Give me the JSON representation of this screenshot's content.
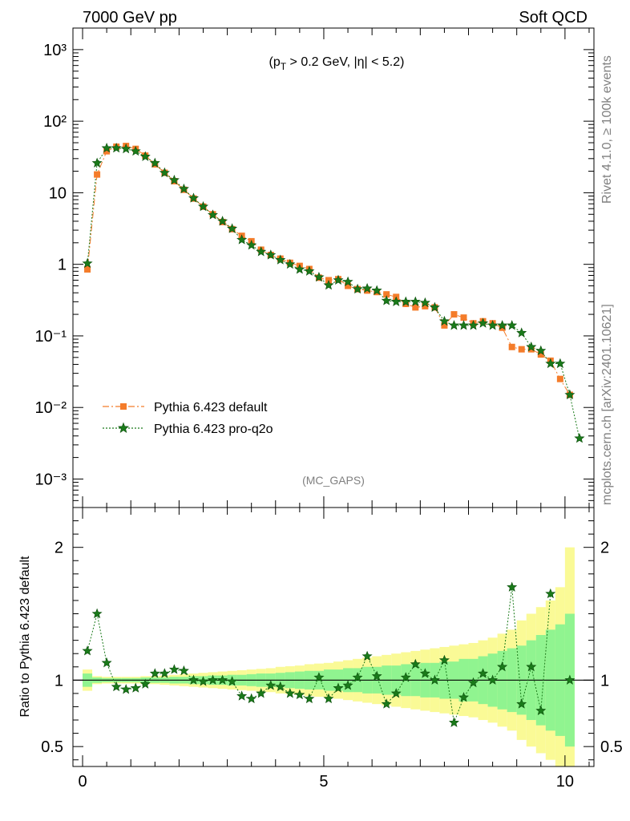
{
  "header": {
    "left": "7000 GeV pp",
    "right": "Soft QCD"
  },
  "annotation": {
    "cuts": "(p_T > 0.2 GeV, |η| < 5.2)",
    "analysis": "(MC_GAPS)"
  },
  "side_labels": {
    "rivet": "Rivet 4.1.0, ≥ 100k events",
    "site": "mcplots.cern.ch [arXiv:2401.10621]"
  },
  "colors": {
    "series1": "#f47c2a",
    "series2": "#1a7a1a",
    "band_inner": "#90f490",
    "band_outer": "#fafa96"
  },
  "chart_data": [
    {
      "type": "line",
      "title": "",
      "xlabel": "",
      "ylabel": "",
      "yscale": "log",
      "xlim": [
        -0.2,
        10.6
      ],
      "ylim": [
        0.0004,
        2000
      ],
      "yticks": [
        {
          "value": 1000,
          "label": "10³"
        },
        {
          "value": 100,
          "label": "10²"
        },
        {
          "value": 10,
          "label": "10"
        },
        {
          "value": 1,
          "label": "1"
        },
        {
          "value": 0.1,
          "label": "10⁻¹"
        },
        {
          "value": 0.01,
          "label": "10⁻²"
        },
        {
          "value": 0.001,
          "label": "10⁻³"
        }
      ],
      "x": [
        0.1,
        0.3,
        0.5,
        0.7,
        0.9,
        1.1,
        1.3,
        1.5,
        1.7,
        1.9,
        2.1,
        2.3,
        2.5,
        2.7,
        2.9,
        3.1,
        3.3,
        3.5,
        3.7,
        3.9,
        4.1,
        4.3,
        4.5,
        4.7,
        4.9,
        5.1,
        5.3,
        5.5,
        5.7,
        5.9,
        6.1,
        6.3,
        6.5,
        6.7,
        6.9,
        7.1,
        7.3,
        7.5,
        7.7,
        7.9,
        8.1,
        8.3,
        8.5,
        8.7,
        8.9,
        9.1,
        9.3,
        9.5,
        9.7,
        9.9,
        10.1,
        10.3
      ],
      "series": [
        {
          "name": "Pythia 6.423 default",
          "marker": "square",
          "linestyle": "dashdot",
          "values": [
            0.85,
            18,
            38,
            44,
            45,
            41,
            33,
            25,
            19,
            14.5,
            11,
            8.3,
            6.4,
            5.0,
            3.9,
            3.1,
            2.5,
            2.1,
            1.6,
            1.35,
            1.2,
            1.05,
            0.95,
            0.86,
            0.65,
            0.6,
            0.62,
            0.5,
            0.45,
            0.43,
            0.41,
            0.38,
            0.35,
            0.28,
            0.25,
            0.26,
            0.25,
            0.14,
            0.2,
            0.18,
            0.15,
            0.16,
            0.15,
            0.13,
            0.07,
            0.065,
            0.065,
            0.055,
            0.045,
            0.025,
            0.015,
            null
          ]
        },
        {
          "name": "Pythia 6.423 pro-q2o",
          "marker": "star",
          "linestyle": "dotted",
          "values": [
            1.03,
            26,
            42,
            42,
            41,
            38,
            32,
            26,
            19,
            15,
            11.3,
            8.4,
            6.4,
            4.9,
            4.0,
            3.15,
            2.2,
            1.85,
            1.5,
            1.35,
            1.15,
            1.0,
            0.85,
            0.8,
            0.66,
            0.51,
            0.6,
            0.57,
            0.45,
            0.46,
            0.43,
            0.31,
            0.3,
            0.3,
            0.3,
            0.29,
            0.25,
            0.16,
            0.14,
            0.14,
            0.14,
            0.15,
            0.14,
            0.14,
            0.14,
            0.11,
            0.07,
            0.062,
            0.041,
            0.041,
            0.015,
            0.0037
          ]
        }
      ],
      "legend": "bottom-left"
    },
    {
      "type": "line",
      "xlabel": "",
      "ylabel": "Ratio to Pythia 6.423 default",
      "xlim": [
        -0.2,
        10.6
      ],
      "ylim": [
        0.35,
        2.3
      ],
      "xticks": [
        0,
        5,
        10
      ],
      "yticks": [
        0.5,
        1,
        2
      ],
      "reference": 1,
      "band_inner_halfwidth": [
        0.05,
        0.02,
        0.015,
        0.015,
        0.015,
        0.015,
        0.02,
        0.02,
        0.02,
        0.025,
        0.025,
        0.03,
        0.03,
        0.035,
        0.035,
        0.04,
        0.04,
        0.045,
        0.05,
        0.05,
        0.055,
        0.06,
        0.065,
        0.07,
        0.07,
        0.08,
        0.08,
        0.09,
        0.09,
        0.1,
        0.1,
        0.11,
        0.11,
        0.12,
        0.12,
        0.13,
        0.13,
        0.14,
        0.14,
        0.16,
        0.16,
        0.18,
        0.2,
        0.22,
        0.24,
        0.26,
        0.3,
        0.34,
        0.38,
        0.42,
        0.5,
        null
      ],
      "band_outer_halfwidth": [
        0.08,
        0.03,
        0.025,
        0.025,
        0.025,
        0.025,
        0.03,
        0.03,
        0.035,
        0.04,
        0.045,
        0.05,
        0.055,
        0.06,
        0.065,
        0.07,
        0.075,
        0.08,
        0.085,
        0.09,
        0.1,
        0.105,
        0.11,
        0.12,
        0.125,
        0.13,
        0.14,
        0.15,
        0.16,
        0.17,
        0.18,
        0.19,
        0.2,
        0.21,
        0.22,
        0.23,
        0.24,
        0.25,
        0.26,
        0.27,
        0.28,
        0.3,
        0.32,
        0.35,
        0.38,
        0.45,
        0.5,
        0.55,
        0.6,
        0.7,
        1.0,
        null
      ],
      "series": [
        {
          "name": "Pythia 6.423 pro-q2o / default",
          "marker": "star",
          "values": [
            1.22,
            1.5,
            1.13,
            0.95,
            0.93,
            0.94,
            0.97,
            1.05,
            1.05,
            1.08,
            1.07,
            1.0,
            0.99,
            1.0,
            1.0,
            0.99,
            0.88,
            0.86,
            0.9,
            0.96,
            0.95,
            0.9,
            0.89,
            0.86,
            1.02,
            0.86,
            0.94,
            0.96,
            1.02,
            1.18,
            1.03,
            0.82,
            0.9,
            1.02,
            1.12,
            1.05,
            1.0,
            1.15,
            0.68,
            0.87,
            0.98,
            1.05,
            1.0,
            1.1,
            1.7,
            0.82,
            1.1,
            0.77,
            1.65,
            null,
            1.0,
            null
          ]
        }
      ]
    }
  ]
}
